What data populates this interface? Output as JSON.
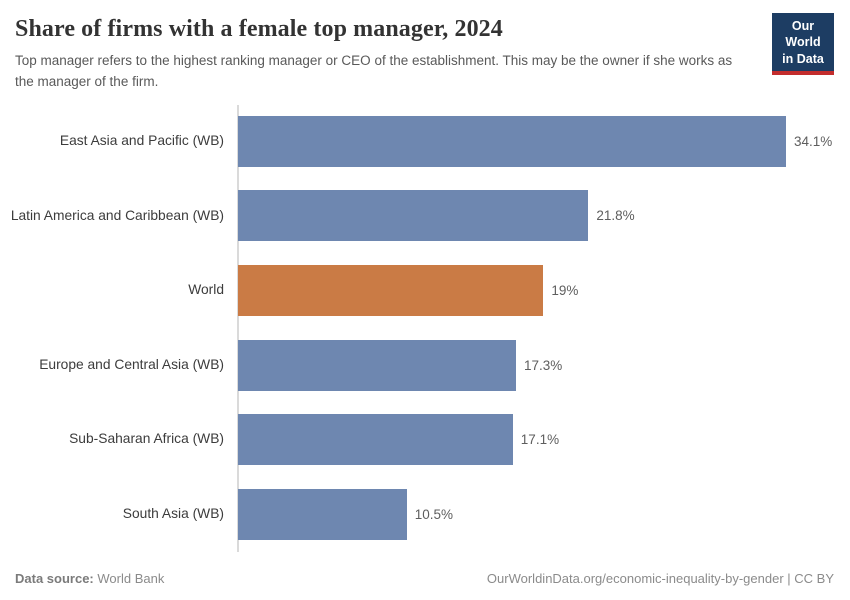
{
  "header": {
    "title": "Share of firms with a female top manager, 2024",
    "subtitle": "Top manager refers to the highest ranking manager or CEO of the establishment. This may be the owner if she works as the manager of the firm.",
    "logo": {
      "line1": "Our World",
      "line2": "in Data"
    }
  },
  "chart_data": {
    "type": "bar",
    "orientation": "horizontal",
    "title": "Share of firms with a female top manager, 2024",
    "categories": [
      "East Asia and Pacific (WB)",
      "Latin America and Caribbean (WB)",
      "World",
      "Europe and Central Asia (WB)",
      "Sub-Saharan Africa (WB)",
      "South Asia (WB)"
    ],
    "values": [
      34.1,
      21.8,
      19,
      17.3,
      17.1,
      10.5
    ],
    "value_labels": [
      "34.1%",
      "21.8%",
      "19%",
      "17.3%",
      "17.1%",
      "10.5%"
    ],
    "unit": "%",
    "xlim": [
      0,
      34.1
    ],
    "highlight_category": "World",
    "bar_color": "#6e87b0",
    "highlight_color": "#ca7b45",
    "grid": false,
    "legend": false
  },
  "footer": {
    "source_label": "Data source:",
    "source_value": "World Bank",
    "link_text": "OurWorldinData.org/economic-inequality-by-gender | CC BY"
  },
  "colors": {
    "logo_bg": "#1d3d63",
    "logo_stripe": "#c32d2d",
    "axis_line": "#dadada"
  }
}
